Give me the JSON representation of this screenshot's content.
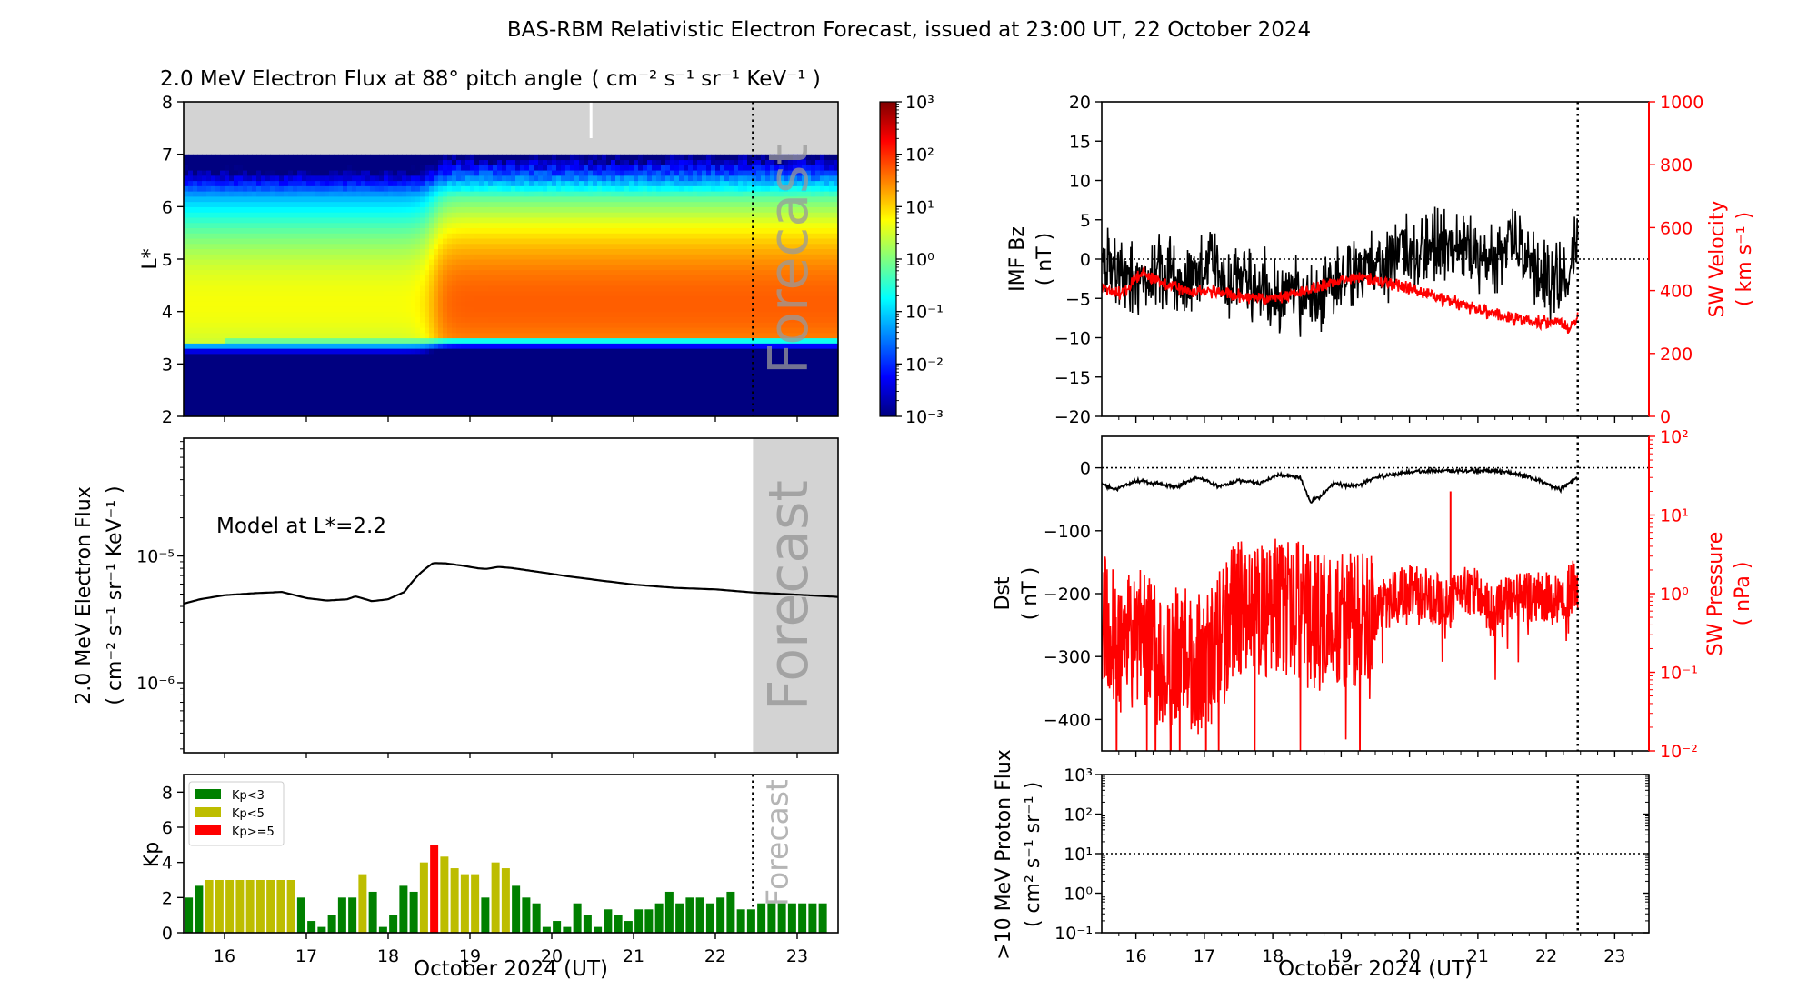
{
  "figure_title": "BAS-RBM Relativistic Electron Forecast, issued at 23:00 UT, 22 October 2024",
  "x_axis": {
    "label": "October 2024 (UT)",
    "range": [
      15.5,
      23.5
    ],
    "ticks": [
      16,
      17,
      18,
      19,
      20,
      21,
      22,
      23
    ],
    "tick_labels": [
      "16",
      "17",
      "18",
      "19",
      "20",
      "21",
      "22",
      "23"
    ]
  },
  "forecast_start_day": 22.46,
  "forecast_label": "Forecast",
  "chart_data": [
    {
      "id": "flux-heatmap",
      "type": "heatmap",
      "title": "2.0 MeV Electron Flux at 88° pitch angle",
      "title_units": "( cm⁻² s⁻¹ sr⁻¹ KeV⁻¹ )",
      "ylabel": "L*",
      "ylim": [
        2,
        8
      ],
      "yticks": [
        2,
        3,
        4,
        5,
        6,
        7,
        8
      ],
      "no_data_above_L": 7,
      "colorbar": {
        "scale": "log",
        "range": [
          -3,
          3
        ],
        "tick_exponents": [
          -3,
          -2,
          -1,
          0,
          1,
          2,
          3
        ],
        "tick_labels": [
          "10⁻³",
          "10⁻²",
          "10⁻¹",
          "10⁰",
          "10¹",
          "10²",
          "10³"
        ]
      },
      "description_values": {
        "pre_storm_peak_log10": 0.7,
        "post_storm_peak_log10": 1.7,
        "storm_day": 18.55,
        "peak_L": 4.0
      }
    },
    {
      "id": "model-flux-line",
      "type": "line",
      "ylabel_line1": "2.0 MeV Electron Flux",
      "ylabel_line2": "( cm⁻² s⁻¹ sr⁻¹ KeV⁻¹ )",
      "annotation": "Model at L*=2.2",
      "yscale": "log",
      "ylim": [
        2.8e-07,
        8.5e-05
      ],
      "yticks": [
        1e-06,
        1e-05
      ],
      "ytick_labels": [
        "10⁻⁶",
        "10⁻⁵"
      ],
      "x": [
        15.5,
        15.7,
        16.0,
        16.4,
        16.7,
        17.0,
        17.25,
        17.5,
        17.6,
        17.8,
        18.0,
        18.2,
        18.4,
        18.55,
        18.7,
        18.9,
        19.1,
        19.2,
        19.35,
        19.5,
        19.8,
        20.2,
        20.6,
        21.0,
        21.5,
        22.0,
        22.46,
        23.0,
        23.5
      ],
      "y": [
        4.2e-06,
        4.55e-06,
        4.9e-06,
        5.1e-06,
        5.2e-06,
        4.65e-06,
        4.45e-06,
        4.55e-06,
        4.8e-06,
        4.4e-06,
        4.55e-06,
        5.2e-06,
        7.4e-06,
        8.8e-06,
        8.75e-06,
        8.4e-06,
        8e-06,
        7.9e-06,
        8.2e-06,
        8.05e-06,
        7.55e-06,
        6.9e-06,
        6.4e-06,
        5.95e-06,
        5.6e-06,
        5.45e-06,
        5.15e-06,
        4.95e-06,
        4.75e-06
      ]
    },
    {
      "id": "kp-bars",
      "type": "bar",
      "ylabel": "Kp",
      "ylim": [
        0,
        9
      ],
      "yticks": [
        0,
        2,
        4,
        6,
        8
      ],
      "bar_width_days": 0.1,
      "legend": [
        {
          "label": "Kp<3",
          "color": "#008000"
        },
        {
          "label": "Kp<5",
          "color": "#bdbd00"
        },
        {
          "label": "Kp>=5",
          "color": "#ff0000"
        }
      ],
      "legend_position": "top-left",
      "x": [
        15.5625,
        15.6875,
        15.8125,
        15.9375,
        16.0625,
        16.1875,
        16.3125,
        16.4375,
        16.5625,
        16.6875,
        16.8125,
        16.9375,
        17.0625,
        17.1875,
        17.3125,
        17.4375,
        17.5625,
        17.6875,
        17.8125,
        17.9375,
        18.0625,
        18.1875,
        18.3125,
        18.4375,
        18.5625,
        18.6875,
        18.8125,
        18.9375,
        19.0625,
        19.1875,
        19.3125,
        19.4375,
        19.5625,
        19.6875,
        19.8125,
        19.9375,
        20.0625,
        20.1875,
        20.3125,
        20.4375,
        20.5625,
        20.6875,
        20.8125,
        20.9375,
        21.0625,
        21.1875,
        21.3125,
        21.4375,
        21.5625,
        21.6875,
        21.8125,
        21.9375,
        22.0625,
        22.1875,
        22.3125,
        22.4375,
        22.5625,
        22.6875,
        22.8125,
        22.9375,
        23.0625,
        23.1875,
        23.3125
      ],
      "values": [
        2.0,
        2.67,
        3.0,
        3.0,
        3.0,
        3.0,
        3.0,
        3.0,
        3.0,
        3.0,
        3.0,
        2.0,
        0.67,
        0.33,
        1.0,
        2.0,
        2.0,
        3.33,
        2.33,
        0.33,
        1.0,
        2.67,
        2.33,
        4.0,
        5.0,
        4.33,
        3.67,
        3.33,
        3.33,
        2.0,
        4.0,
        3.67,
        2.67,
        2.0,
        1.67,
        0.33,
        0.67,
        0.33,
        1.67,
        1.0,
        0.33,
        1.33,
        1.0,
        0.67,
        1.33,
        1.33,
        1.67,
        2.33,
        1.67,
        2.0,
        2.0,
        1.67,
        2.0,
        2.33,
        1.33,
        1.33,
        1.67,
        1.67,
        1.67,
        1.67,
        1.67,
        1.67,
        1.67
      ]
    },
    {
      "id": "imf-sw-velocity",
      "type": "line",
      "ylabel_left": [
        "IMF Bz",
        "( nT )"
      ],
      "ylabel_right": [
        "SW Velocity",
        "( km s⁻¹ )"
      ],
      "ylim_left": [
        -20,
        20
      ],
      "yticks_left": [
        -20,
        -15,
        -10,
        -5,
        0,
        5,
        10,
        15,
        20
      ],
      "ylim_right": [
        0,
        1000
      ],
      "yticks_right": [
        0,
        200,
        400,
        600,
        800,
        1000
      ],
      "series": [
        {
          "name": "IMF Bz",
          "color": "#000000",
          "x": [
            15.5,
            15.7,
            15.9,
            16.1,
            16.3,
            16.5,
            16.7,
            16.9,
            17.1,
            17.3,
            17.5,
            17.7,
            17.9,
            18.1,
            18.3,
            18.5,
            18.7,
            18.9,
            19.1,
            19.3,
            19.5,
            19.7,
            19.9,
            20.1,
            20.3,
            20.5,
            20.7,
            20.9,
            21.1,
            21.3,
            21.5,
            21.7,
            21.9,
            22.1,
            22.3,
            22.46
          ],
          "values": [
            0,
            -1,
            -2,
            -3,
            -1,
            -2,
            -3,
            -2,
            -1,
            -3,
            -2,
            -4,
            -3,
            -5,
            -4,
            -6,
            -5,
            -3,
            -2,
            -1,
            0,
            0,
            1,
            0,
            1,
            2,
            2,
            1,
            0,
            -1,
            3,
            -1,
            -2,
            -3,
            -3,
            4
          ]
        },
        {
          "name": "SW Velocity",
          "color": "#ff0000",
          "x": [
            15.5,
            15.8,
            16.1,
            16.4,
            16.7,
            17.0,
            17.3,
            17.6,
            17.9,
            18.2,
            18.5,
            18.8,
            19.1,
            19.3,
            19.5,
            19.8,
            20.1,
            20.4,
            20.7,
            21.0,
            21.3,
            21.6,
            21.9,
            22.2,
            22.35,
            22.46
          ],
          "values": [
            410,
            390,
            460,
            420,
            400,
            395,
            395,
            380,
            370,
            385,
            400,
            420,
            440,
            440,
            430,
            420,
            400,
            380,
            360,
            340,
            320,
            310,
            300,
            300,
            280,
            310
          ]
        }
      ]
    },
    {
      "id": "dst-sw-pressure",
      "type": "line",
      "ylabel_left": [
        "Dst",
        "( nT )"
      ],
      "ylabel_right": [
        "SW Pressure",
        "( nPa )"
      ],
      "ylim_left": [
        -450,
        50
      ],
      "yticks_left": [
        -400,
        -300,
        -200,
        -100,
        0
      ],
      "ylim_right_log10": [
        -2,
        2
      ],
      "yticks_right_exponents": [
        -2,
        -1,
        0,
        1,
        2
      ],
      "series": [
        {
          "name": "Dst",
          "color": "#000000",
          "x": [
            15.5,
            15.7,
            16.0,
            16.3,
            16.6,
            16.9,
            17.2,
            17.5,
            17.8,
            18.1,
            18.4,
            18.55,
            18.7,
            18.9,
            19.2,
            19.5,
            19.8,
            20.1,
            20.4,
            20.7,
            21.0,
            21.3,
            21.6,
            21.9,
            22.2,
            22.46
          ],
          "values": [
            -25,
            -35,
            -20,
            -25,
            -30,
            -15,
            -30,
            -20,
            -25,
            -10,
            -15,
            -55,
            -45,
            -25,
            -30,
            -15,
            -10,
            -5,
            -5,
            -5,
            -5,
            -5,
            -10,
            -20,
            -35,
            -15
          ]
        },
        {
          "name": "SW Pressure",
          "color": "#ff0000",
          "x": [
            15.5,
            15.8,
            16.1,
            16.4,
            16.7,
            17.0,
            17.3,
            17.6,
            17.9,
            18.2,
            18.5,
            18.8,
            19.1,
            19.4,
            19.7,
            20.0,
            20.3,
            20.6,
            20.9,
            21.2,
            21.5,
            21.8,
            22.1,
            22.46
          ],
          "values": [
            0.5,
            0.2,
            0.3,
            0.1,
            0.2,
            0.1,
            0.3,
            0.8,
            0.6,
            0.7,
            0.5,
            0.4,
            0.5,
            0.4,
            0.8,
            1.1,
            0.9,
            0.7,
            1.1,
            0.6,
            0.8,
            1.0,
            0.8,
            1.3
          ]
        }
      ]
    },
    {
      "id": "proton-flux",
      "type": "line",
      "ylabel_line1": ">10 MeV Proton Flux",
      "ylabel_line2": "( cm² s⁻¹ sr⁻¹ )",
      "yscale": "log",
      "ylim_log10": [
        -1,
        3
      ],
      "yticks_exponents": [
        -1,
        0,
        1,
        2,
        3
      ],
      "threshold": 10,
      "series": []
    }
  ]
}
